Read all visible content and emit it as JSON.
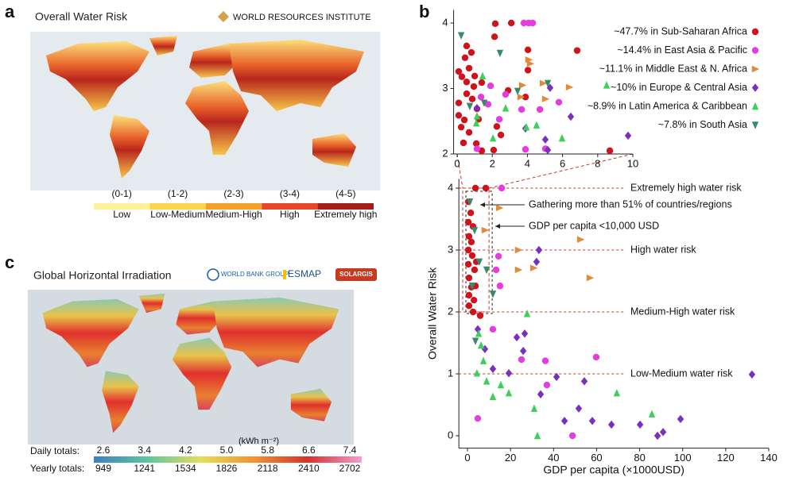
{
  "panels": {
    "a": {
      "label": "a",
      "title": "Overall Water Risk",
      "source": "WORLD RESOURCES INSTITUTE",
      "legend_ranges": [
        "(0-1)",
        "(1-2)",
        "(2-3)",
        "(3-4)",
        "(4-5)"
      ],
      "legend_labels": [
        "Low",
        "Low-Medium",
        "Medium-High",
        "High",
        "Extremely high"
      ],
      "legend_colors": [
        "#fff39a",
        "#fcd44d",
        "#f4a12b",
        "#e8452a",
        "#a51c1c"
      ]
    },
    "b": {
      "label": "b"
    },
    "c": {
      "label": "c",
      "title": "Global Horizontal Irradiation",
      "logos": [
        "WORLD BANK GROUP",
        "ESMAP",
        "SOLARGIS"
      ],
      "unit": "(kWh m⁻²)",
      "daily_label": "Daily totals:",
      "yearly_label": "Yearly totals:",
      "daily_totals": [
        "2.6",
        "3.4",
        "4.2",
        "5.0",
        "5.8",
        "6.6",
        "7.4"
      ],
      "yearly_totals": [
        "949",
        "1241",
        "1534",
        "1826",
        "2118",
        "2410",
        "2702"
      ]
    }
  },
  "chart_data": [
    {
      "type": "scatter",
      "xlabel": "GDP per capita (×1000USD)",
      "ylabel": "Overall Water Risk",
      "xlim": [
        -4,
        140
      ],
      "ylim": [
        -0.2,
        4.15
      ],
      "xticks": [
        0,
        20,
        40,
        60,
        80,
        100,
        120,
        140
      ],
      "yticks": [
        0,
        1,
        2,
        3,
        4
      ],
      "reference_lines": [
        {
          "value": 4,
          "label": "Extremely high water risk"
        },
        {
          "value": 3,
          "label": "High water risk"
        },
        {
          "value": 2,
          "label": "Medium-High water risk"
        },
        {
          "value": 1,
          "label": "Low-Medium water risk"
        }
      ],
      "zoom_box": {
        "x": [
          0,
          10
        ],
        "y": [
          2,
          4
        ]
      },
      "annotations": [
        "Gathering more than 51% of countries/regions",
        "GDP per capita <10,000 USD"
      ],
      "series": [
        {
          "color": "#d0121b",
          "marker": "circle",
          "x": [
            3.7,
            8.5,
            0.4,
            1.5,
            0.4,
            2.6,
            0.7,
            1.8,
            0.4,
            2.2,
            0.4,
            3.3,
            0.7,
            1.8,
            0.7,
            3.0,
            0.7,
            2.6,
            5.9,
            3.7,
            4.1
          ],
          "y": [
            4.0,
            4.0,
            3.78,
            3.6,
            3.45,
            3.38,
            3.22,
            3.13,
            3.0,
            2.91,
            2.77,
            2.68,
            2.55,
            2.4,
            2.27,
            2.19,
            2.1,
            2.0,
            1.94,
            2.42,
            2.81
          ]
        },
        {
          "color": "#e43ce0",
          "marker": "circle",
          "x": [
            15.9,
            14.4,
            13.3,
            15.1,
            11.8,
            25.1,
            36.9,
            59.8,
            4.8,
            48.8,
            36.2
          ],
          "y": [
            4.0,
            2.9,
            2.68,
            2.42,
            1.72,
            1.23,
            0.82,
            1.27,
            0.28,
            0.0,
            1.21
          ]
        },
        {
          "color": "#e08a3a",
          "marker": "triangle-right",
          "x": [
            14.8,
            52.5,
            56.9,
            23.6,
            30.7,
            23.6,
            8.1
          ],
          "y": [
            3.68,
            3.17,
            2.55,
            3.0,
            2.71,
            2.68,
            3.32
          ]
        },
        {
          "color": "#7b2fbe",
          "marker": "diamond",
          "x": [
            33.2,
            132.2,
            99.0,
            88.3,
            90.9,
            66.9,
            51.7,
            4.8,
            8.1,
            19.2,
            34.0,
            41.4,
            54.3,
            22.9,
            25.9,
            11.8,
            45.1,
            58.0,
            80.2,
            32.1,
            26.6
          ],
          "y": [
            3.0,
            0.99,
            0.27,
            0.0,
            0.06,
            0.18,
            0.44,
            1.72,
            1.4,
            1.01,
            0.67,
            0.95,
            0.88,
            1.59,
            1.37,
            1.08,
            0.24,
            0.24,
            0.18,
            2.81,
            1.65
          ]
        },
        {
          "color": "#3ecf5a",
          "marker": "triangle-up",
          "x": [
            27.7,
            5.2,
            6.3,
            7.4,
            8.9,
            15.5,
            31.0,
            69.4,
            85.7,
            32.5,
            11.8,
            19.2,
            4.4
          ],
          "y": [
            1.97,
            1.65,
            1.46,
            1.21,
            0.88,
            0.82,
            0.44,
            0.69,
            0.35,
            0.0,
            0.63,
            0.69,
            1.01
          ]
        },
        {
          "color": "#3a8a6a",
          "marker": "triangle-down",
          "x": [
            1.1,
            3.3,
            5.5,
            8.9,
            2.2,
            11.8,
            3.7
          ],
          "y": [
            3.78,
            3.32,
            2.81,
            2.68,
            2.42,
            2.29,
            1.53
          ]
        }
      ]
    },
    {
      "type": "scatter",
      "xlim": [
        -0.2,
        10
      ],
      "ylim": [
        2,
        4.2
      ],
      "xticks": [
        0,
        2,
        4,
        6,
        8,
        10
      ],
      "yticks": [
        2,
        3,
        4
      ],
      "series": [
        {
          "name": "~47.7% in Sub-Saharan Africa",
          "color": "#d0121b",
          "marker": "circle",
          "x": [
            2.17,
            3.08,
            2.13,
            0.54,
            0.81,
            0.45,
            0.09,
            0.68,
            1.0,
            0.54,
            0.27,
            0.95,
            1.4,
            0.54,
            0.86,
            0.09,
            1.13,
            0.09,
            0.41,
            1.22,
            0.23,
            0.68,
            0.36,
            1.09,
            1.4,
            2.08,
            2.49,
            2.26,
            4.03,
            2.9,
            6.83,
            8.69,
            4.03,
            3.89
          ],
          "y": [
            3.99,
            4.0,
            3.79,
            3.65,
            3.55,
            3.47,
            3.26,
            3.31,
            3.19,
            3.1,
            3.18,
            3.03,
            3.09,
            2.92,
            2.84,
            2.78,
            2.69,
            2.59,
            2.52,
            2.53,
            2.41,
            2.33,
            2.17,
            2.16,
            2.05,
            2.06,
            2.29,
            2.42,
            3.59,
            2.97,
            3.58,
            2.05,
            3.28,
            2.87
          ]
        },
        {
          "name": "~14.4% in East Asia & Pacific",
          "color": "#e43ce0",
          "marker": "circle",
          "x": [
            3.8,
            4.07,
            4.3,
            1.36,
            1.76,
            2.4,
            2.76,
            3.67,
            4.71,
            5.79,
            1.9,
            1.13,
            3.89,
            5.02
          ],
          "y": [
            4.0,
            4.0,
            4.0,
            2.87,
            2.76,
            2.53,
            2.91,
            2.68,
            2.68,
            2.79,
            3.04,
            2.08,
            2.07,
            2.08
          ]
        },
        {
          "name": "~11.1% in Middle East & N. Africa",
          "color": "#e08a3a",
          "marker": "triangle-right",
          "x": [
            4.07,
            4.16,
            4.89,
            3.71,
            6.38,
            5.02,
            3.62
          ],
          "y": [
            3.44,
            3.38,
            3.08,
            3.05,
            3.02,
            2.84,
            2.87
          ]
        },
        {
          "name": "~10% in Europe & Central Asia",
          "color": "#7b2fbe",
          "marker": "diamond",
          "x": [
            1.13,
            5.29,
            6.47,
            9.73,
            5.16,
            3.89,
            5.02
          ],
          "y": [
            2.7,
            3.01,
            2.57,
            2.28,
            2.06,
            2.39,
            2.22
          ]
        },
        {
          "name": "~8.9% in Latin America & Caribbean",
          "color": "#3ecf5a",
          "marker": "triangle-up",
          "x": [
            1.45,
            1.13,
            2.04,
            4.52,
            5.97,
            3.94,
            2.76,
            1.09,
            8.51
          ],
          "y": [
            3.19,
            2.58,
            2.24,
            2.44,
            2.24,
            2.41,
            2.7,
            2.47,
            3.05
          ]
        },
        {
          "name": "~7.8% in South Asia",
          "color": "#3a8a6a",
          "marker": "triangle-down",
          "x": [
            0.23,
            2.44,
            3.44,
            5.16,
            0.72,
            1.54
          ],
          "y": [
            3.81,
            3.54,
            2.96,
            3.08,
            2.73,
            2.78
          ]
        }
      ]
    }
  ]
}
